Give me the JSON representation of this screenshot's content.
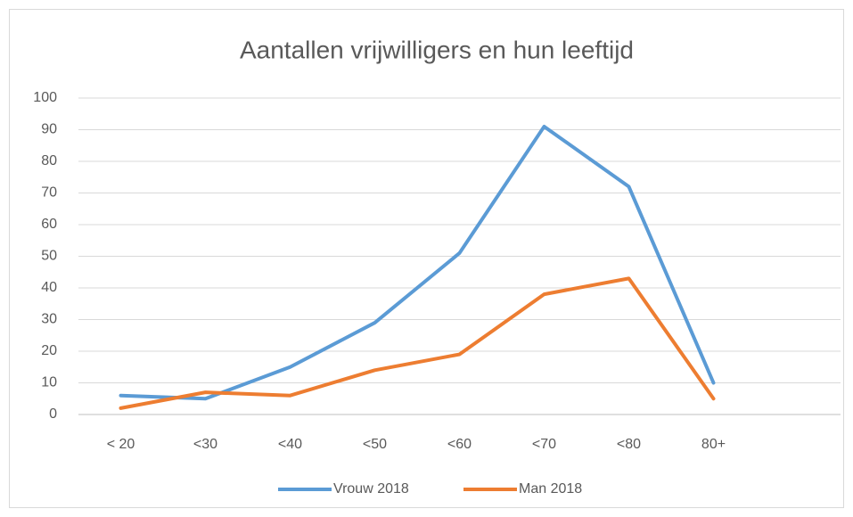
{
  "chart_data": {
    "type": "line",
    "title": "Aantallen vrijwilligers en hun leeftijd",
    "categories": [
      "< 20",
      "<30",
      "<40",
      "<50",
      "<60",
      "<70",
      "<80",
      "80+",
      null
    ],
    "series": [
      {
        "name": "Vrouw 2018",
        "color": "#5b9bd5",
        "values": [
          6,
          5,
          15,
          29,
          51,
          91,
          72,
          10,
          null
        ]
      },
      {
        "name": "Man 2018",
        "color": "#ed7d31",
        "values": [
          2,
          7,
          6,
          14,
          19,
          38,
          43,
          5,
          null
        ]
      }
    ],
    "ylim": [
      0,
      100
    ],
    "yticks": [
      0,
      10,
      20,
      30,
      40,
      50,
      60,
      70,
      80,
      90,
      100
    ],
    "grid": true,
    "legend": "bottom"
  }
}
